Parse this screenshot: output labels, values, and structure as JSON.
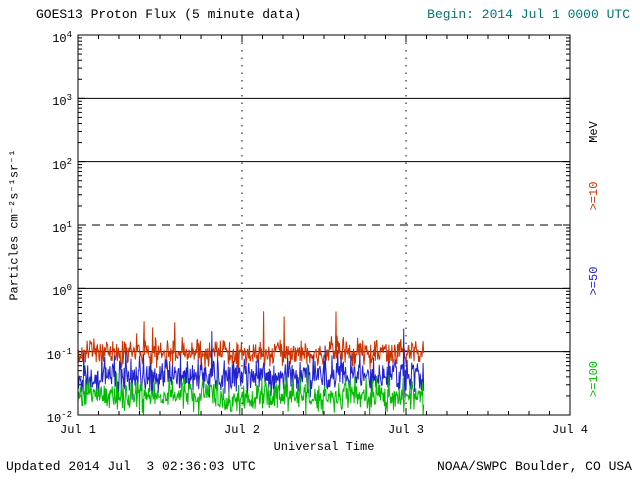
{
  "header": {
    "title": "GOES13 Proton Flux (5 minute data)",
    "begin": "Begin: 2014 Jul 1 0000 UTC"
  },
  "footer": {
    "updated": "Updated 2014 Jul  3 02:36:03 UTC",
    "credit": "NOAA/SWPC Boulder, CO USA"
  },
  "colors": {
    "background": "#ffffff",
    "axis": "#000000",
    "begin_text": "#007777"
  },
  "chart_data": {
    "type": "line",
    "title": "GOES13 Proton Flux (5 minute data)",
    "xlabel": "Universal Time",
    "ylabel": "Particles cm⁻²s⁻¹sr⁻¹",
    "y_scale": "log",
    "y_tick_base": "10",
    "y_tick_exponents": [
      4,
      3,
      2,
      1,
      0,
      -1,
      -2
    ],
    "ylog_range": [
      -2,
      4
    ],
    "x_ticks": [
      "Jul 1",
      "Jul 2",
      "Jul 3",
      "Jul 4"
    ],
    "x_range_days": [
      0,
      3
    ],
    "grid": true,
    "gridlines": {
      "solid_exponents": [
        3,
        2,
        0,
        -1
      ],
      "dashed_exponents": [
        1
      ],
      "vertical_dotted_days": [
        1,
        2
      ]
    },
    "right_axis": {
      "unit_label": "MeV",
      "series_labels": [
        ">=10",
        ">=50",
        ">=100"
      ]
    },
    "series": [
      {
        "name": ">=10 MeV",
        "color": "#cc3300",
        "baseline_flux": 0.095,
        "sigma_dex": 0.11,
        "spike_prob": 0.012,
        "spike_max_dex": 0.65,
        "start_day": 0,
        "end_day": 2.108,
        "step_minutes": 5,
        "seed": 20140701
      },
      {
        "name": ">=50 MeV",
        "color": "#2222cc",
        "baseline_flux": 0.042,
        "sigma_dex": 0.14,
        "spike_prob": 0.005,
        "spike_max_dex": 0.85,
        "start_day": 0,
        "end_day": 2.108,
        "step_minutes": 5,
        "seed": 20140702
      },
      {
        "name": ">=100 MeV",
        "color": "#00bb00",
        "baseline_flux": 0.02,
        "sigma_dex": 0.13,
        "spike_prob": 0.008,
        "spike_max_dex": 0.55,
        "start_day": 0,
        "end_day": 2.108,
        "step_minutes": 5,
        "seed": 20140703
      }
    ]
  }
}
